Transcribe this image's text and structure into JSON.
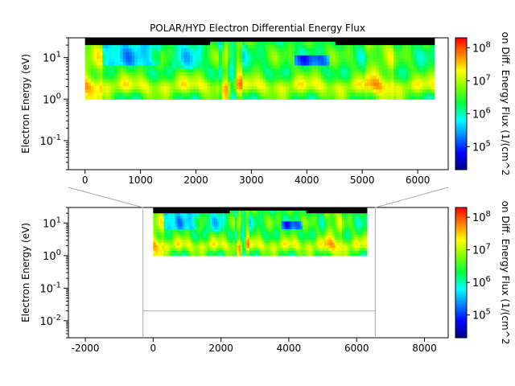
{
  "title": "POLAR/HYD  Electron Differential Energy Flux",
  "chart_data": [
    {
      "type": "heatmap",
      "panel": "upper",
      "ylabel": "Electron Energy (eV)",
      "y_scale": "log",
      "xlim": [
        -300,
        6550
      ],
      "ylim": [
        0.02,
        30
      ],
      "x_ticks": [
        0,
        1000,
        2000,
        3000,
        4000,
        5000,
        6000
      ],
      "x_tick_labels": [
        "0",
        "1000",
        "2000",
        "3000",
        "4000",
        "5000",
        "6000"
      ],
      "y_ticks": [
        0.1,
        1,
        10
      ],
      "y_tick_labels": [
        [
          "10",
          "-1"
        ],
        [
          "10",
          "0"
        ],
        [
          "10",
          "1"
        ]
      ],
      "data_x_range": [
        0,
        6300
      ],
      "data_y_range": [
        1,
        30
      ],
      "colorbar": {
        "label": "on Diff. Energy Flux (1/(cm^2",
        "scale": "log",
        "range": [
          20000,
          200000000
        ],
        "ticks": [
          100000,
          1000000,
          10000000,
          100000000
        ],
        "tick_labels": [
          [
            "10",
            "5"
          ],
          [
            "10",
            "6"
          ],
          [
            "10",
            "7"
          ],
          [
            "10",
            "8"
          ]
        ]
      }
    },
    {
      "type": "heatmap",
      "panel": "lower",
      "ylabel": "Electron Energy (eV)",
      "y_scale": "log",
      "xlim": [
        -2500,
        8700
      ],
      "ylim": [
        0.003,
        30
      ],
      "x_ticks": [
        -2000,
        0,
        2000,
        4000,
        6000,
        8000
      ],
      "x_tick_labels": [
        "-2000",
        "0",
        "2000",
        "4000",
        "6000",
        "8000"
      ],
      "y_ticks": [
        0.01,
        0.1,
        1,
        10
      ],
      "y_tick_labels": [
        [
          "10",
          "-2"
        ],
        [
          "10",
          "-1"
        ],
        [
          "10",
          "0"
        ],
        [
          "10",
          "1"
        ]
      ],
      "data_x_range": [
        0,
        6300
      ],
      "data_y_range": [
        1,
        30
      ],
      "colorbar": {
        "label": "on Diff. Energy Flux (1/(cm^2",
        "scale": "log",
        "range": [
          20000,
          200000000
        ],
        "ticks": [
          100000,
          1000000,
          10000000,
          100000000
        ],
        "tick_labels": [
          [
            "10",
            "5"
          ],
          [
            "10",
            "6"
          ],
          [
            "10",
            "7"
          ],
          [
            "10",
            "8"
          ]
        ]
      }
    }
  ]
}
